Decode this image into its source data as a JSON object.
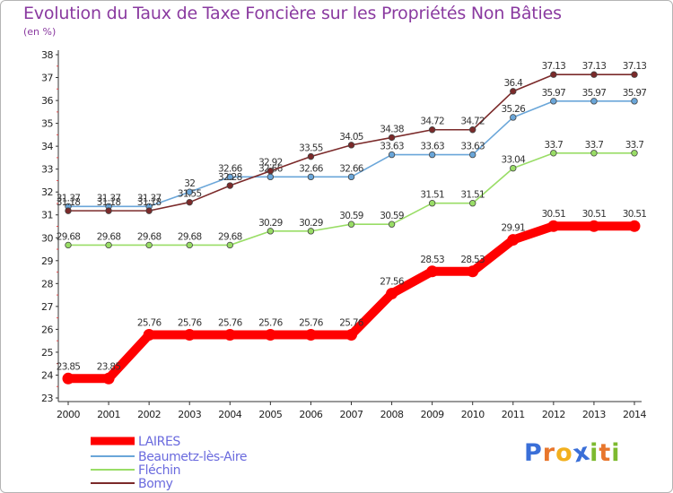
{
  "page": {
    "title": "Evolution du Taux de Taxe Foncière sur les Propriétés Non Bâties",
    "unit": "(en %)",
    "logo": [
      "P",
      "r",
      "o",
      "x",
      "i",
      "t",
      "i"
    ],
    "logo_colors": [
      "#3a6fd8",
      "#e8762c",
      "#f2b01e",
      "#3a6fd8",
      "#7dba2f",
      "#e8762c",
      "#7dba2f"
    ]
  },
  "chart_data": {
    "type": "line",
    "title": "Evolution du Taux de Taxe Foncière sur les Propriétés Non Bâties",
    "ylabel": "(en %)",
    "xlabel": "",
    "x": [
      2000,
      2001,
      2002,
      2003,
      2004,
      2005,
      2006,
      2007,
      2008,
      2009,
      2010,
      2011,
      2012,
      2013,
      2014
    ],
    "ylim": [
      23,
      38
    ],
    "yticks": [
      23,
      24,
      25,
      26,
      27,
      28,
      29,
      30,
      31,
      32,
      33,
      34,
      35,
      36,
      37,
      38
    ],
    "grid": false,
    "legend_position": "bottom-left",
    "series": [
      {
        "name": "LAIRES",
        "color": "#ff0000",
        "values": [
          23.85,
          23.85,
          25.76,
          25.76,
          25.76,
          25.76,
          25.76,
          25.76,
          27.56,
          28.53,
          28.53,
          29.91,
          30.51,
          30.51,
          30.51
        ],
        "labels": [
          "23.85",
          "23.85",
          "25.76",
          "25.76",
          "25.76",
          "25.76",
          "25.76",
          "25.76",
          "27.56",
          "28.53",
          "28.53",
          "29.91",
          "30.51",
          "30.51",
          "30.51"
        ]
      },
      {
        "name": "Beaumetz-lès-Aire",
        "color": "#6aa6d9",
        "values": [
          31.37,
          31.37,
          31.37,
          32,
          32.66,
          32.66,
          32.66,
          32.66,
          33.63,
          33.63,
          33.63,
          35.26,
          35.97,
          35.97,
          35.97
        ],
        "labels": [
          "31.37",
          "31.37",
          "31.37",
          "32",
          "32.66",
          "32.66",
          "32.66",
          "32.66",
          "33.63",
          "33.63",
          "33.63",
          "35.26",
          "35.97",
          "35.97",
          "35.97"
        ]
      },
      {
        "name": "Fléchin",
        "color": "#99dd66",
        "values": [
          29.68,
          29.68,
          29.68,
          29.68,
          29.68,
          30.29,
          30.29,
          30.59,
          30.59,
          31.51,
          31.51,
          33.04,
          33.7,
          33.7,
          33.7
        ],
        "labels": [
          "29.68",
          "29.68",
          "29.68",
          "29.68",
          "29.68",
          "30.29",
          "30.29",
          "30.59",
          "30.59",
          "31.51",
          "31.51",
          "33.04",
          "33.7",
          "33.7",
          "33.7"
        ]
      },
      {
        "name": "Bomy",
        "color": "#7b2a2a",
        "values": [
          31.18,
          31.18,
          31.18,
          31.55,
          32.28,
          32.92,
          33.55,
          34.05,
          34.38,
          34.72,
          34.72,
          36.4,
          37.13,
          37.13,
          37.13
        ],
        "labels": [
          "31.18",
          "31.18",
          "31.18",
          "31.55",
          "32.28",
          "32.92",
          "33.55",
          "34.05",
          "34.38",
          "34.72",
          "34.72",
          "36.4",
          "37.13",
          "37.13",
          "37.13"
        ]
      }
    ]
  }
}
